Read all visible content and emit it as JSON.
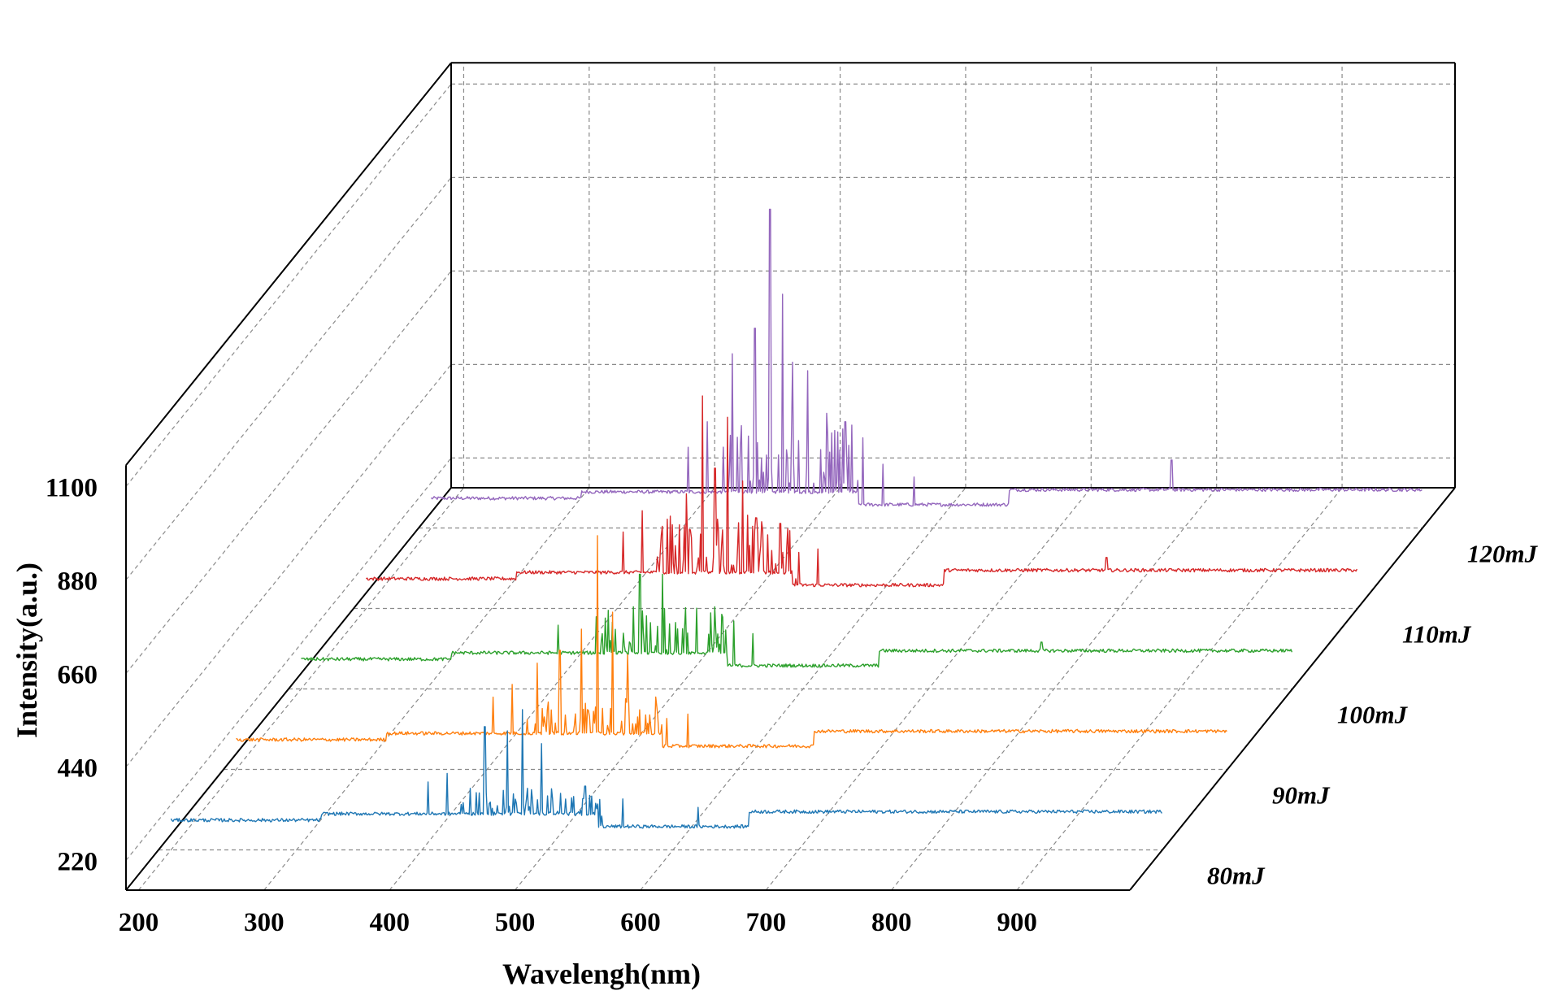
{
  "chart_data": {
    "type": "line",
    "subtype": "3d-waterfall",
    "title": "",
    "xlabel": "Wavelengh(nm)",
    "ylabel": "Intensity(a.u.)",
    "xlim": [
      190,
      990
    ],
    "ylim": [
      150,
      1150
    ],
    "x_ticks": [
      "200",
      "300",
      "400",
      "500",
      "600",
      "700",
      "800",
      "900"
    ],
    "y_ticks": [
      "220",
      "440",
      "660",
      "880",
      "1100"
    ],
    "z_ticks": [
      "80mJ",
      "90mJ",
      "100mJ",
      "110mJ",
      "120mJ"
    ],
    "grid": true,
    "series": [
      {
        "name": "80mJ",
        "color": "#1f77b4",
        "segments": [
          {
            "x_start": 200,
            "x_end": 320,
            "baseline": 220
          },
          {
            "x_start": 320,
            "x_end": 540,
            "baseline": 235
          },
          {
            "x_start": 540,
            "x_end": 660,
            "baseline": 205
          },
          {
            "x_start": 660,
            "x_end": 990,
            "baseline": 240
          }
        ],
        "peaks": [
          [
            405,
            310
          ],
          [
            420,
            330
          ],
          [
            450,
            440
          ],
          [
            468,
            430
          ],
          [
            480,
            480
          ],
          [
            495,
            400
          ],
          [
            530,
            300
          ],
          [
            560,
            270
          ],
          [
            620,
            250
          ]
        ]
      },
      {
        "name": "90mJ",
        "color": "#ff7f0e",
        "segments": [
          {
            "x_start": 200,
            "x_end": 320,
            "baseline": 220
          },
          {
            "x_start": 320,
            "x_end": 540,
            "baseline": 235
          },
          {
            "x_start": 540,
            "x_end": 660,
            "baseline": 205
          },
          {
            "x_start": 660,
            "x_end": 990,
            "baseline": 240
          }
        ],
        "peaks": [
          [
            405,
            320
          ],
          [
            420,
            350
          ],
          [
            440,
            400
          ],
          [
            458,
            430
          ],
          [
            475,
            480
          ],
          [
            488,
            700
          ],
          [
            500,
            520
          ],
          [
            512,
            420
          ],
          [
            535,
            300
          ],
          [
            560,
            280
          ]
        ]
      },
      {
        "name": "100mJ",
        "color": "#2ca02c",
        "segments": [
          {
            "x_start": 200,
            "x_end": 320,
            "baseline": 220
          },
          {
            "x_start": 320,
            "x_end": 540,
            "baseline": 235
          },
          {
            "x_start": 540,
            "x_end": 660,
            "baseline": 205
          },
          {
            "x_start": 660,
            "x_end": 990,
            "baseline": 240
          }
        ],
        "peaks": [
          [
            405,
            300
          ],
          [
            440,
            280
          ],
          [
            470,
            420
          ],
          [
            488,
            420
          ],
          [
            515,
            340
          ],
          [
            530,
            290
          ],
          [
            545,
            310
          ],
          [
            560,
            280
          ],
          [
            790,
            260
          ]
        ]
      },
      {
        "name": "110mJ",
        "color": "#d62728",
        "segments": [
          {
            "x_start": 200,
            "x_end": 320,
            "baseline": 220
          },
          {
            "x_start": 320,
            "x_end": 540,
            "baseline": 235
          },
          {
            "x_start": 540,
            "x_end": 660,
            "baseline": 205
          },
          {
            "x_start": 660,
            "x_end": 990,
            "baseline": 240
          }
        ],
        "peaks": [
          [
            405,
            330
          ],
          [
            420,
            380
          ],
          [
            440,
            360
          ],
          [
            455,
            420
          ],
          [
            468,
            650
          ],
          [
            478,
            480
          ],
          [
            488,
            600
          ],
          [
            500,
            450
          ],
          [
            530,
            350
          ],
          [
            560,
            290
          ],
          [
            790,
            270
          ]
        ]
      },
      {
        "name": "120mJ",
        "color": "#9467bd",
        "segments": [
          {
            "x_start": 200,
            "x_end": 320,
            "baseline": 220
          },
          {
            "x_start": 320,
            "x_end": 540,
            "baseline": 235
          },
          {
            "x_start": 540,
            "x_end": 660,
            "baseline": 205
          },
          {
            "x_start": 660,
            "x_end": 990,
            "baseline": 240
          }
        ],
        "peaks": [
          [
            405,
            340
          ],
          [
            420,
            400
          ],
          [
            440,
            560
          ],
          [
            458,
            620
          ],
          [
            470,
            900
          ],
          [
            480,
            700
          ],
          [
            488,
            540
          ],
          [
            500,
            520
          ],
          [
            515,
            420
          ],
          [
            530,
            400
          ],
          [
            560,
            300
          ],
          [
            585,
            270
          ],
          [
            790,
            310
          ]
        ]
      }
    ]
  }
}
